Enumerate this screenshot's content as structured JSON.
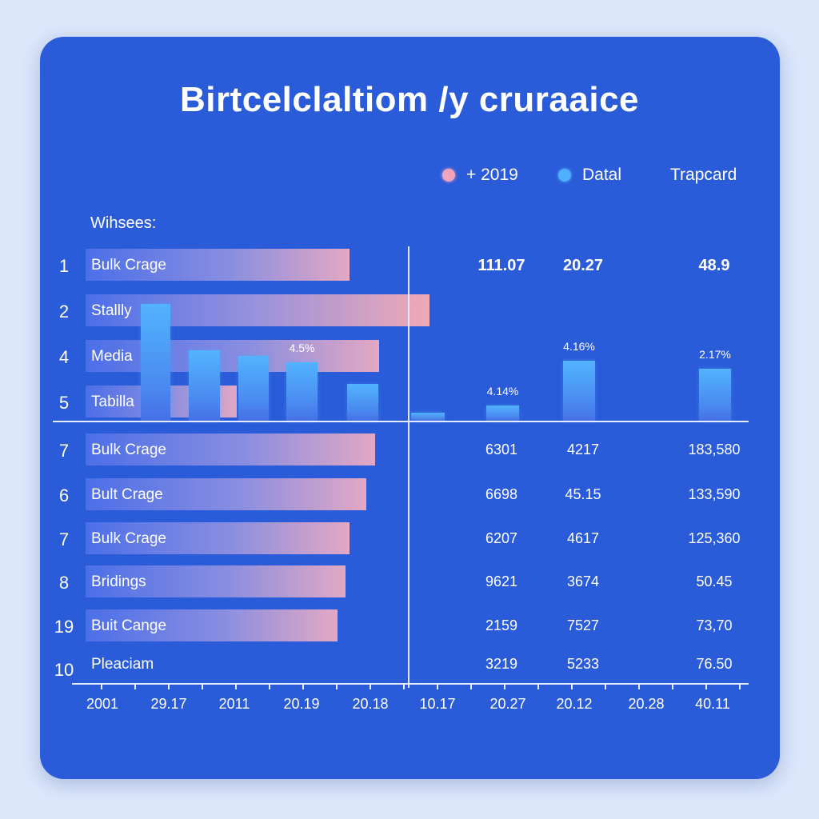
{
  "chart_data": {
    "type": "bar",
    "title": "Birtcelclaltiom /y cruraaice",
    "subtitle": "Wihsees:",
    "legend": [
      {
        "label": "+ 2019",
        "color": "#f1a4bd"
      },
      {
        "label": "Datal",
        "color": "#4fb0ff"
      },
      {
        "label": "Trapcard",
        "color": ""
      }
    ],
    "rows": [
      {
        "num": "1",
        "label": "Bulk Crage",
        "value": 0.63,
        "cols": [
          "111.07",
          "20.27",
          "48.9"
        ]
      },
      {
        "num": "2",
        "label": "Stallly",
        "value": 0.82,
        "cols": [
          "",
          "",
          ""
        ]
      },
      {
        "num": "4",
        "label": "Media",
        "value": 0.7,
        "cols": [
          "",
          "",
          ""
        ]
      },
      {
        "num": "5",
        "label": "Tabilla",
        "value": 0.36,
        "cols": [
          "",
          "",
          ""
        ]
      },
      {
        "num": "7",
        "label": "Bulk Crage",
        "value": 0.69,
        "cols": [
          "6301",
          "4217",
          "183,580"
        ]
      },
      {
        "num": "6",
        "label": "Bult Crage",
        "value": 0.67,
        "cols": [
          "6698",
          "45.15",
          "133,590"
        ]
      },
      {
        "num": "7",
        "label": "Bulk Crage",
        "value": 0.63,
        "cols": [
          "6207",
          "4617",
          "125,360"
        ]
      },
      {
        "num": "8",
        "label": "Bridings",
        "value": 0.62,
        "cols": [
          "9621",
          "3674",
          "50.45"
        ]
      },
      {
        "num": "19",
        "label": "Buit Cange",
        "value": 0.6,
        "cols": [
          "2159",
          "7527",
          "73,70"
        ]
      },
      {
        "num": "10",
        "label": "Pleaciam",
        "value": 0,
        "cols": [
          "3219",
          "5233",
          "76.50"
        ]
      }
    ],
    "columns": [
      {
        "value": 0.76,
        "label": ""
      },
      {
        "value": 0.46,
        "label": ""
      },
      {
        "value": 0.42,
        "label": ""
      },
      {
        "value": 0.38,
        "label": "4.5%"
      },
      {
        "value": 0.24,
        "label": ""
      },
      {
        "value": 0.05,
        "label": ""
      },
      {
        "value": 0.1,
        "label": "4.14%"
      },
      {
        "value": 0.39,
        "label": "4.16%"
      },
      {
        "value": 0.34,
        "label": "2.17%"
      }
    ],
    "x_tick_labels": [
      "2001",
      "29.17",
      "2011",
      "20.19",
      "20.18",
      "10.17",
      "20.27",
      "20.12",
      "20.28",
      "40.11"
    ],
    "grid": false,
    "legend_position": "top-right"
  }
}
